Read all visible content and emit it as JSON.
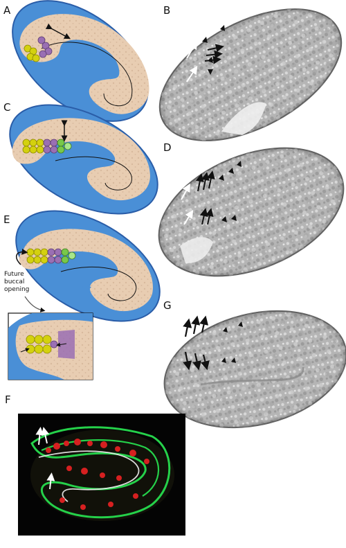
{
  "figure": {
    "panel_labels": {
      "a": "A",
      "b": "B",
      "c": "C",
      "d": "D",
      "e": "E",
      "f": "F",
      "g": "G"
    },
    "annotation_lines": [
      "Future",
      "buccal",
      "opening"
    ]
  },
  "colors": {
    "eggshell": "#4a8fd6",
    "eggshell_edge": "#2a5da8",
    "embryo": "#e8cdb2",
    "cell_yellow": "#d4d10f",
    "cell_purple": "#9a6fb3",
    "cell_green": "#78c84a",
    "dic_gray": "#b8b8b8",
    "fluor_red": "#d62020",
    "fluor_green": "#25d14a",
    "fluor_white": "#f0f0f0"
  },
  "icons": [
    "double-arrow-icon",
    "black-arrowhead-icon",
    "white-arrow-icon",
    "curved-arrow-icon"
  ]
}
